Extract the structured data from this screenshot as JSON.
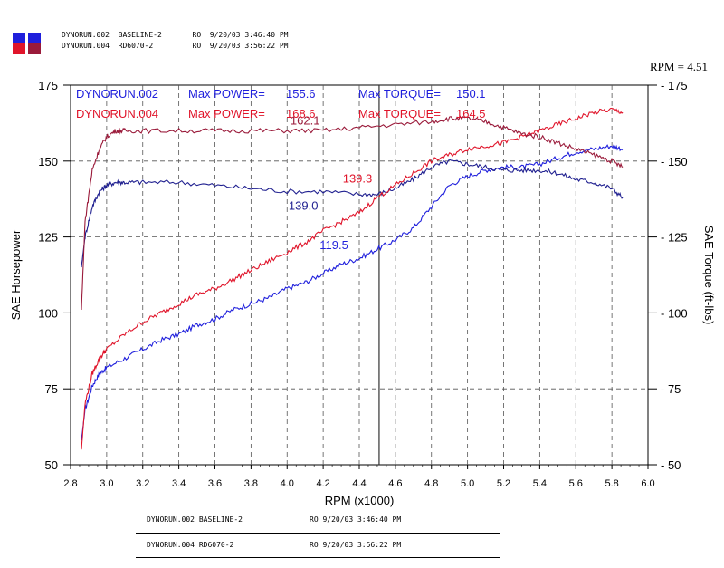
{
  "header": {
    "runs": [
      {
        "file": "DYNORUN.002",
        "name": "BASELINE-2",
        "stamp": "RO  9/20/03 3:46:40 PM",
        "color": "#1f1fdc"
      },
      {
        "file": "DYNORUN.004",
        "name": "RD6070-2",
        "stamp": "RO  9/20/03 3:56:22 PM",
        "color": "#e0142a"
      }
    ]
  },
  "cursor_readout": "RPM = 4.51",
  "footer": {
    "rows": [
      {
        "file": "DYNORUN.002",
        "name": "BASELINE-2",
        "stamp": "RO  9/20/03 3:46:40 PM"
      },
      {
        "file": "DYNORUN.004",
        "name": "RD6070-2",
        "stamp": "RO  9/20/03 3:56:22 PM"
      }
    ]
  },
  "colors": {
    "run002_power": "#1f1fdc",
    "run002_torque": "#202090",
    "run004_power": "#e0142a",
    "run004_torque": "#9a1a3a",
    "grid": "#555555",
    "cursor": "#333333"
  },
  "chart_data": {
    "type": "line",
    "xlabel": "RPM (x1000)",
    "ylabel": "SAE Horsepower",
    "y2label": "SAE Torque (ft-lbs)",
    "xlim": [
      2.8,
      6.0
    ],
    "ylim": [
      50,
      175
    ],
    "y2lim": [
      50,
      175
    ],
    "xticks": [
      "2.8",
      "3.0",
      "3.2",
      "3.4",
      "3.6",
      "3.8",
      "4.0",
      "4.2",
      "4.4",
      "4.6",
      "4.8",
      "5.0",
      "5.2",
      "5.4",
      "5.6",
      "5.8",
      "6.0"
    ],
    "yticks": [
      "50",
      "75",
      "100",
      "125",
      "150",
      "175"
    ],
    "grid": true,
    "cursor_x": 4.51,
    "legend_lines": [
      {
        "run": "DYNORUN.002",
        "power_label": "Max POWER=",
        "power": "155.6",
        "torque_label": "Max TORQUE=",
        "torque": "150.1",
        "color": "#1f1fdc"
      },
      {
        "run": "DYNORUN.004",
        "power_label": "Max POWER=",
        "power": "168.6",
        "torque_label": "Max TORQUE=",
        "torque": "164.5",
        "color": "#e0142a"
      }
    ],
    "annotations": [
      {
        "text": "162.1",
        "x": 4.1,
        "y": 162,
        "color": "#9a1a3a"
      },
      {
        "text": "139.3",
        "x": 4.39,
        "y": 143,
        "color": "#e0142a"
      },
      {
        "text": "139.0",
        "x": 4.09,
        "y": 134,
        "color": "#202090"
      },
      {
        "text": "119.5",
        "x": 4.26,
        "y": 121,
        "color": "#1f1fdc"
      }
    ],
    "series": [
      {
        "name": "DYNORUN.002 Power",
        "axis": "left",
        "color": "#1f1fdc",
        "x": [
          2.86,
          2.88,
          2.92,
          2.96,
          3.0,
          3.1,
          3.2,
          3.3,
          3.4,
          3.5,
          3.6,
          3.7,
          3.8,
          3.9,
          4.0,
          4.1,
          4.2,
          4.3,
          4.4,
          4.5,
          4.6,
          4.7,
          4.8,
          4.9,
          5.0,
          5.1,
          5.2,
          5.3,
          5.4,
          5.5,
          5.6,
          5.7,
          5.8,
          5.86
        ],
        "values": [
          58,
          68,
          76,
          80,
          82,
          85,
          88,
          91,
          93,
          96,
          98,
          101,
          103,
          105,
          108,
          110,
          113,
          116,
          118,
          121,
          124,
          128,
          135,
          142,
          145,
          147,
          148,
          148,
          149,
          151,
          153,
          154,
          155,
          154
        ]
      },
      {
        "name": "DYNORUN.002 Torque",
        "axis": "right",
        "color": "#202090",
        "x": [
          2.86,
          2.88,
          2.92,
          2.96,
          3.0,
          3.05,
          3.1,
          3.2,
          3.4,
          3.6,
          3.8,
          4.0,
          4.2,
          4.4,
          4.5,
          4.6,
          4.7,
          4.8,
          4.9,
          5.0,
          5.1,
          5.2,
          5.3,
          5.4,
          5.5,
          5.6,
          5.7,
          5.8,
          5.86
        ],
        "values": [
          115,
          125,
          135,
          140,
          142,
          143,
          143,
          143,
          143,
          142,
          141,
          140,
          140,
          139,
          139,
          141,
          144,
          148,
          150,
          149,
          148,
          147,
          147,
          147,
          146,
          144,
          143,
          141,
          138
        ]
      },
      {
        "name": "DYNORUN.004 Power",
        "axis": "left",
        "color": "#e0142a",
        "x": [
          2.86,
          2.88,
          2.92,
          2.96,
          3.0,
          3.1,
          3.2,
          3.3,
          3.4,
          3.5,
          3.6,
          3.7,
          3.8,
          3.9,
          4.0,
          4.1,
          4.2,
          4.3,
          4.4,
          4.5,
          4.6,
          4.7,
          4.8,
          4.9,
          5.0,
          5.1,
          5.2,
          5.3,
          5.4,
          5.5,
          5.6,
          5.7,
          5.8,
          5.86
        ],
        "values": [
          55,
          70,
          80,
          85,
          88,
          93,
          97,
          100,
          103,
          106,
          108,
          111,
          114,
          117,
          120,
          123,
          127,
          130,
          133,
          138,
          142,
          146,
          150,
          152,
          154,
          155,
          156,
          158,
          160,
          162,
          164,
          166,
          167,
          166
        ]
      },
      {
        "name": "DYNORUN.004 Torque",
        "axis": "right",
        "color": "#9a1a3a",
        "x": [
          2.86,
          2.88,
          2.92,
          2.96,
          3.0,
          3.05,
          3.1,
          3.2,
          3.4,
          3.6,
          3.8,
          4.0,
          4.2,
          4.4,
          4.6,
          4.8,
          4.9,
          5.0,
          5.1,
          5.2,
          5.3,
          5.4,
          5.5,
          5.6,
          5.7,
          5.8,
          5.86
        ],
        "values": [
          101,
          130,
          147,
          154,
          158,
          160,
          160,
          160,
          160,
          160,
          160,
          160,
          160,
          161,
          162,
          163,
          164,
          164,
          163,
          161,
          159,
          158,
          156,
          154,
          152,
          150,
          148
        ]
      }
    ]
  }
}
